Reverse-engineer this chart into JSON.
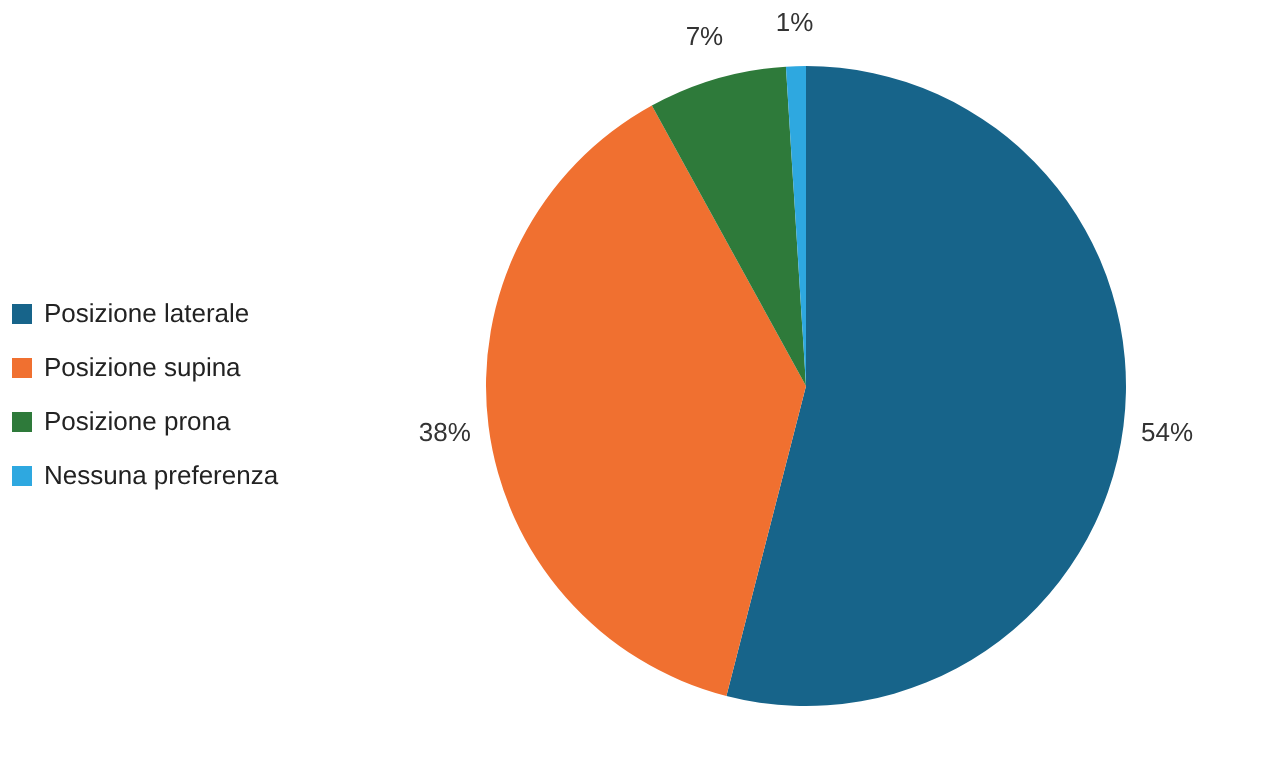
{
  "chart_data": {
    "type": "pie",
    "categories": [
      "Posizione laterale",
      "Posizione supina",
      "Posizione prona",
      "Nessuna preferenza"
    ],
    "values": [
      54,
      38,
      7,
      1
    ],
    "colors": [
      "#17648a",
      "#f07030",
      "#2e7a3a",
      "#2ea8e0"
    ],
    "value_labels": [
      "54%",
      "38%",
      "7%",
      "1%"
    ],
    "legend": "left"
  }
}
